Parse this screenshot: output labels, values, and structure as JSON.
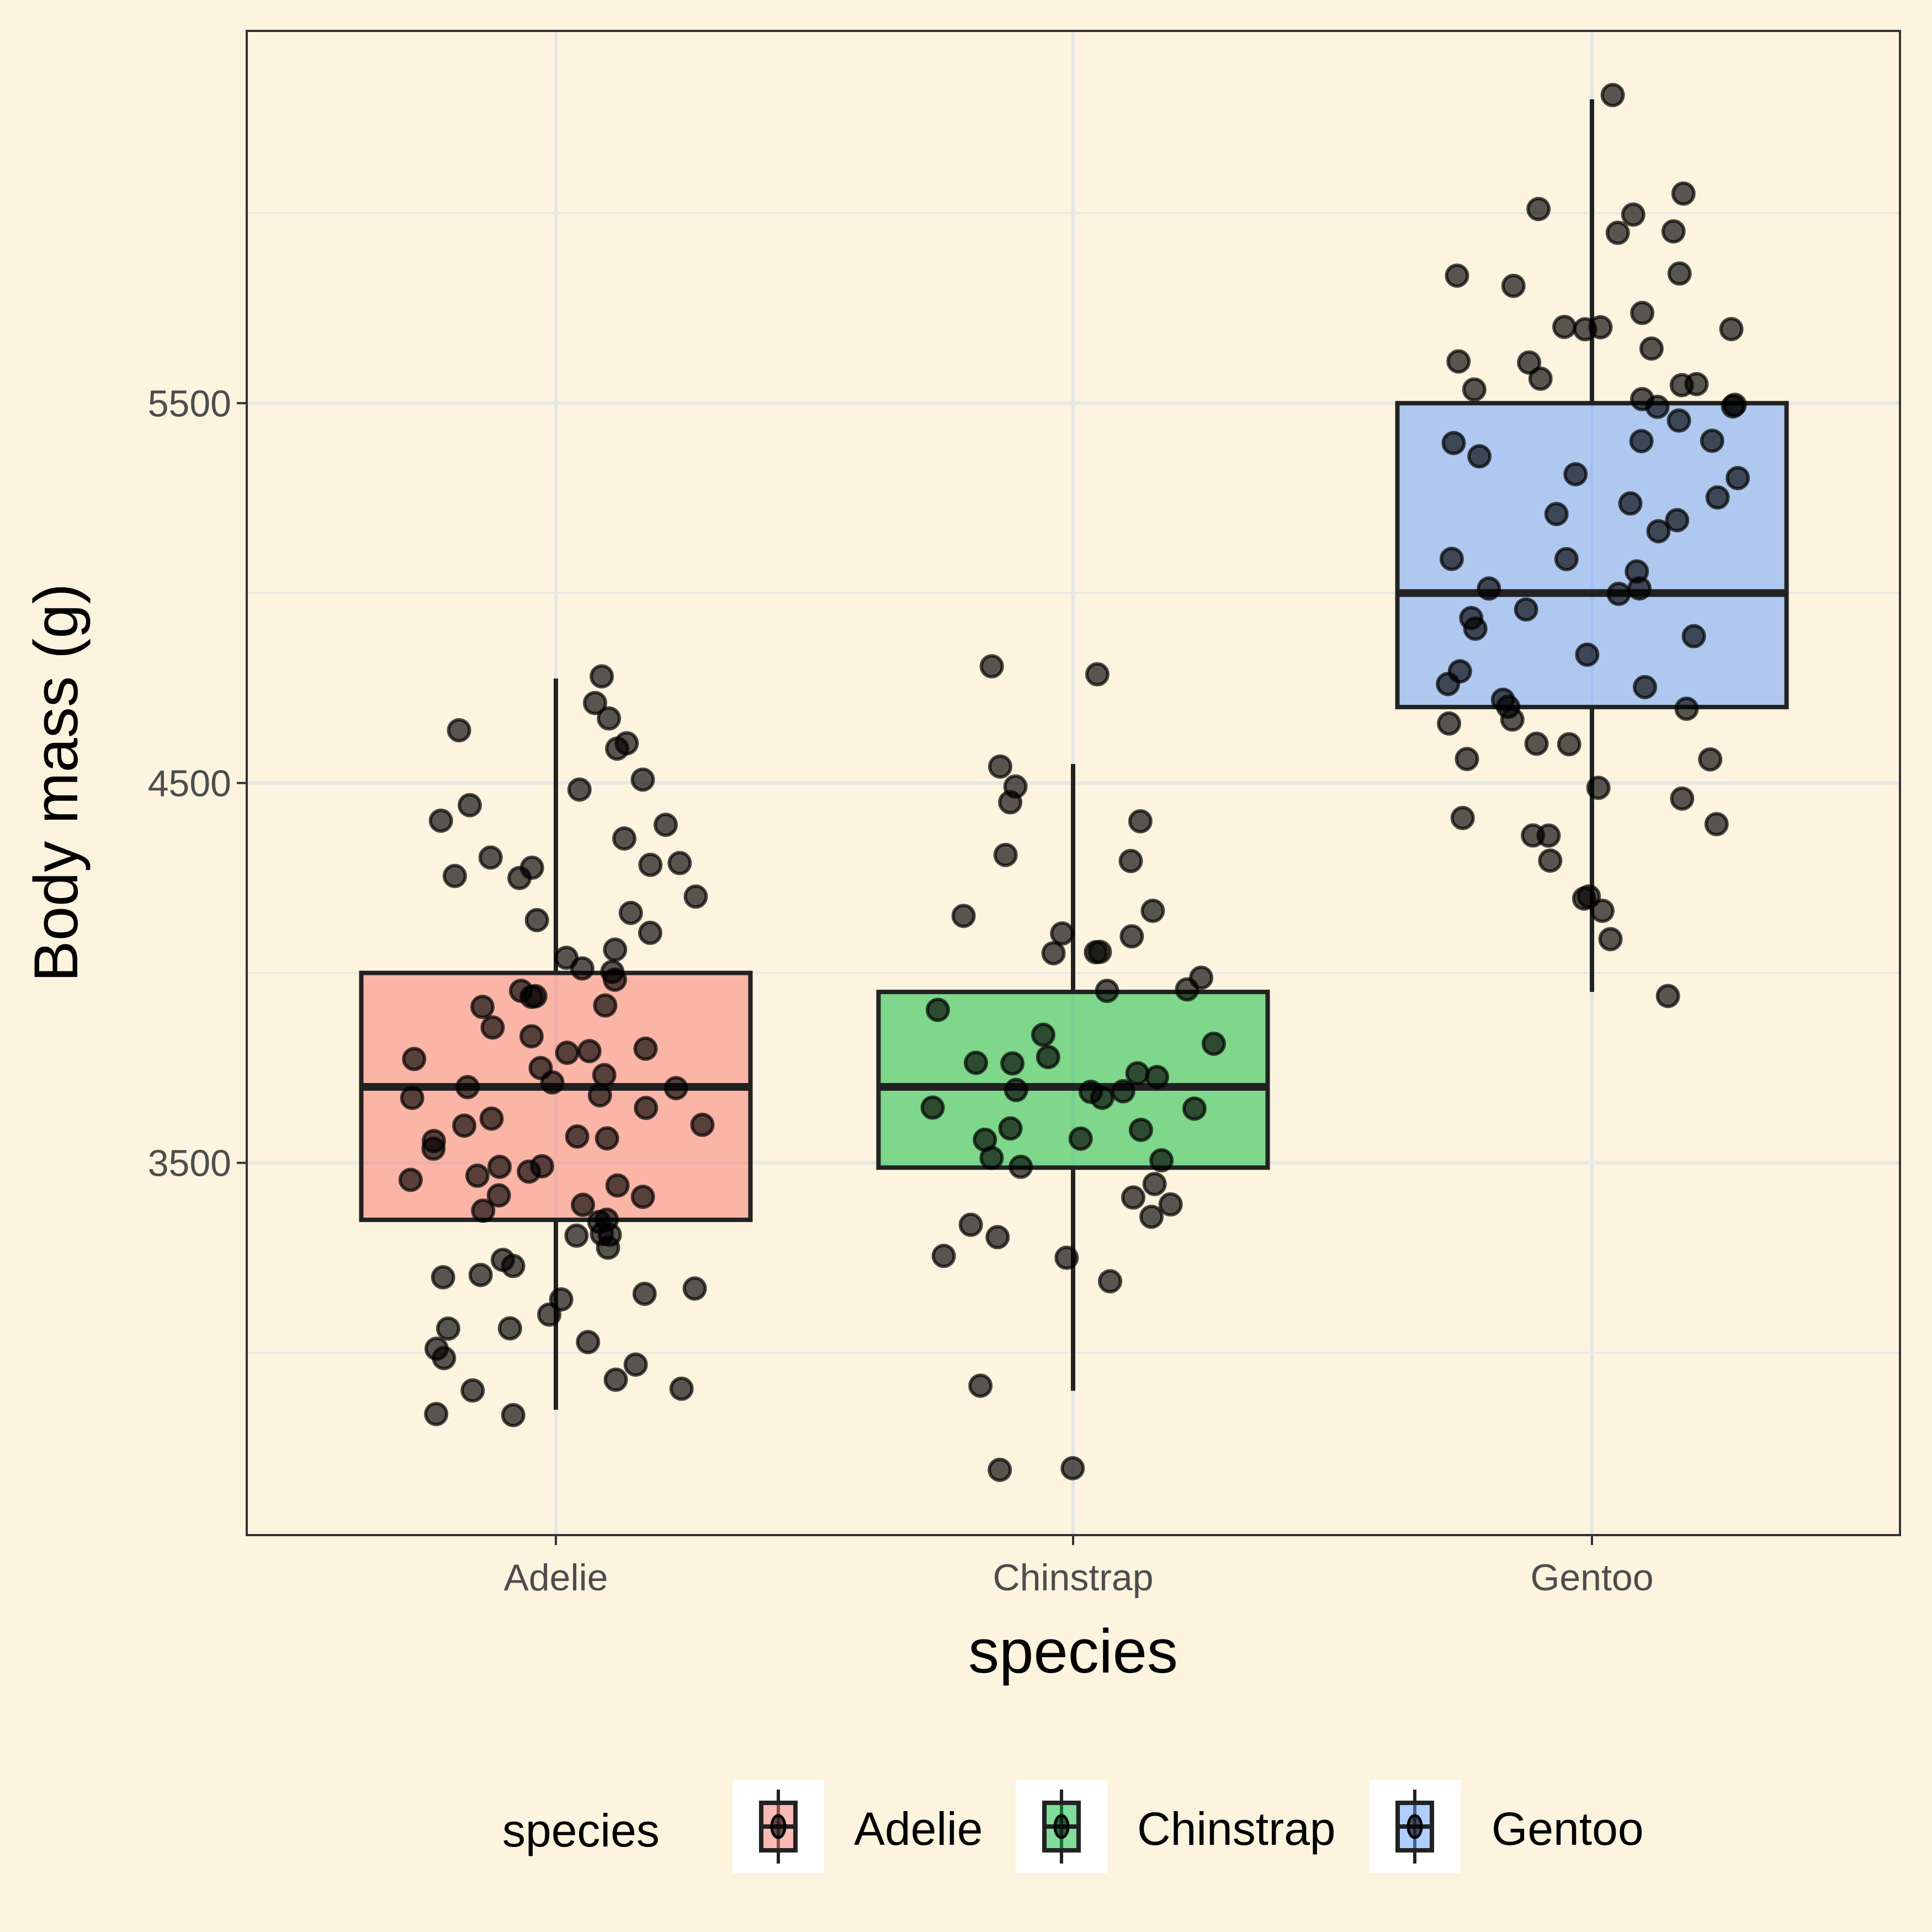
{
  "chart_data": {
    "type": "boxplot",
    "title": "",
    "xlabel": "species",
    "ylabel": "Body mass (g)",
    "ylim": [
      2520,
      6480
    ],
    "yticks": [
      3500,
      4500,
      5500
    ],
    "yminor": [
      3000,
      4000,
      5000,
      6000
    ],
    "grid": true,
    "legend": {
      "title": "species",
      "placement": "bottom",
      "entries": [
        "Adelie",
        "Chinstrap",
        "Gentoo"
      ]
    },
    "categories": [
      "Adelie",
      "Chinstrap",
      "Gentoo"
    ],
    "colors": {
      "Adelie": "#F8766D",
      "Chinstrap": "#00BA38",
      "Gentoo": "#619CFF"
    },
    "background": "#FCF4DE",
    "boxes": [
      {
        "species": "Adelie",
        "lower_whisker": 2850,
        "q1": 3350,
        "median": 3700,
        "q3": 4000,
        "upper_whisker": 4775
      },
      {
        "species": "Chinstrap",
        "lower_whisker": 2900,
        "q1": 3487.5,
        "median": 3700,
        "q3": 3950,
        "upper_whisker": 4550
      },
      {
        "species": "Gentoo",
        "lower_whisker": 3950,
        "q1": 4700,
        "median": 5000,
        "q3": 5500,
        "upper_whisker": 6300
      }
    ],
    "points": {
      "Adelie": [
        4775,
        4725,
        4675,
        4650,
        4600,
        4600,
        4500,
        4475,
        4450,
        4400,
        4400,
        4350,
        4300,
        4300,
        4275,
        4275,
        4250,
        4250,
        4200,
        4150,
        4150,
        4100,
        4050,
        4050,
        4000,
        4000,
        3975,
        3950,
        3950,
        3925,
        3900,
        3900,
        3850,
        3825,
        3800,
        3800,
        3800,
        3775,
        3750,
        3725,
        3725,
        3700,
        3700,
        3675,
        3675,
        3650,
        3625,
        3600,
        3600,
        3575,
        3575,
        3550,
        3550,
        3500,
        3500,
        3475,
        3475,
        3450,
        3450,
        3425,
        3400,
        3400,
        3375,
        3350,
        3350,
        3325,
        3300,
        3300,
        3275,
        3250,
        3225,
        3200,
        3200,
        3175,
        3150,
        3150,
        3100,
        3075,
        3050,
        3025,
        3000,
        2975,
        2975,
        2925,
        2900,
        2900,
        2850,
        2850
      ],
      "Chinstrap": [
        4800,
        4800,
        4550,
        4500,
        4450,
        4400,
        4300,
        4300,
        4150,
        4150,
        4100,
        4100,
        4050,
        4050,
        4050,
        4000,
        3950,
        3950,
        3900,
        3850,
        3800,
        3775,
        3775,
        3775,
        3750,
        3725,
        3700,
        3700,
        3675,
        3675,
        3650,
        3650,
        3600,
        3600,
        3575,
        3550,
        3525,
        3500,
        3500,
        3450,
        3400,
        3400,
        3350,
        3325,
        3300,
        3250,
        3250,
        3200,
        2900,
        2700,
        2700
      ],
      "Gentoo": [
        6300,
        6050,
        6000,
        6000,
        5950,
        5950,
        5850,
        5850,
        5800,
        5750,
        5700,
        5700,
        5700,
        5700,
        5650,
        5600,
        5600,
        5550,
        5550,
        5550,
        5550,
        5500,
        5500,
        5500,
        5500,
        5450,
        5400,
        5400,
        5400,
        5350,
        5300,
        5300,
        5250,
        5250,
        5200,
        5200,
        5150,
        5100,
        5100,
        5050,
        5000,
        5000,
        5000,
        4950,
        4925,
        4900,
        4875,
        4850,
        4800,
        4750,
        4750,
        4725,
        4700,
        4700,
        4675,
        4650,
        4600,
        4600,
        4550,
        4550,
        4500,
        4450,
        4400,
        4400,
        4375,
        4350,
        4300,
        4200,
        4200,
        4150,
        4100,
        3950
      ]
    }
  }
}
